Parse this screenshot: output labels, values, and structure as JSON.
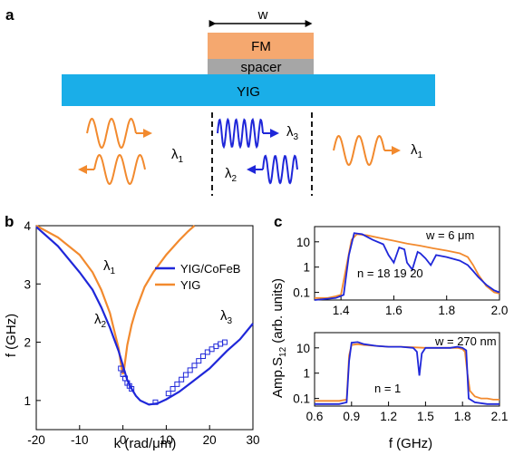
{
  "colors": {
    "orange": "#f28a2e",
    "blue": "#1f27d9",
    "fm": "#f5a86f",
    "spacer": "#a6a6a6",
    "yig": "#1aaee8"
  },
  "panel_a": {
    "letter": "a",
    "width_label": "w",
    "layers": {
      "fm": "FM",
      "spacer": "spacer",
      "yig": "YIG"
    },
    "wave_labels": {
      "left": "λ",
      "left_sub": "1",
      "right": "λ",
      "right_sub": "1",
      "center_top": "λ",
      "center_top_sub": "3",
      "center_bottom": "λ",
      "center_bottom_sub": "2"
    }
  },
  "panel_b": {
    "letter": "b",
    "ylabel": "f (GHz)",
    "xlabel": "k (rad/μm)",
    "legend": [
      "YIG/CoFeB",
      "YIG"
    ],
    "curve_labels": {
      "l1": "λ",
      "l1_sub": "1",
      "l2": "λ",
      "l2_sub": "2",
      "l3": "λ",
      "l3_sub": "3"
    }
  },
  "panel_c": {
    "letter": "c",
    "ylabel": "Amp.S",
    "ylabel_sub": "12",
    "ylabel_suffix": " (arb. units)",
    "xlabel": "f (GHz)",
    "top": {
      "annotation": "w = 6 μm",
      "modes": "n = 18 19 20"
    },
    "bottom": {
      "annotation": "w = 270 nm",
      "modes": "n = 1"
    }
  },
  "chart_data": [
    {
      "type": "line",
      "panel": "b",
      "xlabel": "k (rad/μm)",
      "ylabel": "f (GHz)",
      "xlim": [
        -20,
        30
      ],
      "ylim": [
        0.5,
        4
      ],
      "xticks": [
        -20,
        -10,
        0,
        10,
        20,
        30
      ],
      "yticks": [
        1,
        2,
        3,
        4
      ],
      "series": [
        {
          "name": "YIG/CoFeB",
          "color": "#1f27d9",
          "x": [
            -20,
            -15,
            -10,
            -7,
            -5,
            -3,
            -2,
            -1,
            0,
            1,
            2,
            3,
            4,
            6,
            8,
            10,
            13,
            16,
            20,
            24,
            27,
            30
          ],
          "y": [
            3.98,
            3.65,
            3.2,
            2.9,
            2.6,
            2.25,
            2.05,
            1.85,
            1.6,
            1.35,
            1.2,
            1.08,
            1.0,
            0.93,
            0.95,
            1.02,
            1.15,
            1.32,
            1.55,
            1.85,
            2.05,
            2.32
          ]
        },
        {
          "name": "YIG",
          "color": "#f28a2e",
          "x": [
            -20,
            -15,
            -10,
            -7,
            -5,
            -3,
            -2,
            -1,
            -0.3,
            0,
            0.3,
            1,
            2,
            3,
            5,
            7,
            10,
            13,
            15,
            16.5
          ],
          "y": [
            4.0,
            3.8,
            3.5,
            3.2,
            2.9,
            2.5,
            2.2,
            1.9,
            1.55,
            1.45,
            1.55,
            1.95,
            2.3,
            2.55,
            2.95,
            3.2,
            3.5,
            3.75,
            3.9,
            4.0
          ]
        },
        {
          "name": "",
          "marker": "square-open",
          "color": "#1f27d9",
          "x": [
            -0.5,
            0,
            0.5,
            1,
            1.5,
            2,
            7.5,
            10.5,
            11.5,
            12.5,
            13.5,
            14.5,
            15.5,
            16.5,
            17.5,
            18.5,
            19.5,
            20.5,
            21.5,
            22.5,
            23.5
          ],
          "y": [
            1.55,
            1.45,
            1.38,
            1.3,
            1.25,
            1.2,
            0.97,
            1.12,
            1.2,
            1.28,
            1.36,
            1.44,
            1.52,
            1.6,
            1.68,
            1.76,
            1.83,
            1.88,
            1.93,
            1.97,
            2.0
          ]
        }
      ]
    },
    {
      "type": "line",
      "panel": "c-top",
      "xlim": [
        1.3,
        2.0
      ],
      "ylim_log": [
        0.05,
        40
      ],
      "xticks": [
        1.4,
        1.6,
        1.8,
        2.0
      ],
      "yticks": [
        0.1,
        1,
        10
      ],
      "annotation": "w = 6 μm",
      "series": [
        {
          "name": "",
          "color": "#f28a2e",
          "x": [
            1.3,
            1.35,
            1.38,
            1.4,
            1.42,
            1.44,
            1.46,
            1.5,
            1.55,
            1.6,
            1.65,
            1.7,
            1.75,
            1.8,
            1.85,
            1.88,
            1.9,
            1.92,
            1.95,
            1.98,
            2.0
          ],
          "y": [
            0.06,
            0.06,
            0.07,
            0.08,
            1.0,
            12,
            20,
            18,
            14,
            11,
            8.5,
            7,
            5.5,
            4.5,
            3.5,
            2.5,
            1.2,
            0.5,
            0.18,
            0.1,
            0.09
          ]
        },
        {
          "name": "",
          "color": "#1f27d9",
          "x": [
            1.3,
            1.38,
            1.41,
            1.43,
            1.45,
            1.48,
            1.52,
            1.56,
            1.58,
            1.6,
            1.62,
            1.64,
            1.65,
            1.67,
            1.69,
            1.7,
            1.72,
            1.74,
            1.76,
            1.8,
            1.85,
            1.88,
            1.9,
            1.92,
            1.95,
            1.98,
            2.0
          ],
          "y": [
            0.05,
            0.06,
            0.08,
            3,
            22,
            20,
            12,
            8,
            3,
            1.5,
            6,
            5,
            1.5,
            0.8,
            4,
            3.5,
            2.2,
            1.2,
            3,
            2.5,
            1.8,
            1.2,
            0.7,
            0.4,
            0.2,
            0.12,
            0.1
          ]
        }
      ]
    },
    {
      "type": "line",
      "panel": "c-bottom",
      "xlabel": "f (GHz)",
      "xlim": [
        0.6,
        2.1
      ],
      "ylim_log": [
        0.05,
        40
      ],
      "xticks": [
        0.6,
        0.9,
        1.2,
        1.5,
        1.8,
        2.1
      ],
      "yticks": [
        0.1,
        1,
        10
      ],
      "annotation": "w = 270 nm",
      "series": [
        {
          "name": "",
          "color": "#f28a2e",
          "x": [
            0.6,
            0.8,
            0.86,
            0.88,
            0.9,
            0.95,
            1.0,
            1.1,
            1.2,
            1.3,
            1.4,
            1.5,
            1.6,
            1.7,
            1.76,
            1.8,
            1.82,
            1.84,
            1.86,
            1.9,
            1.95,
            2.0,
            2.05,
            2.1
          ],
          "y": [
            0.08,
            0.08,
            0.09,
            5,
            13,
            14,
            13,
            12,
            11,
            11,
            10.5,
            10,
            10,
            10,
            10,
            9,
            7,
            1,
            0.2,
            0.12,
            0.1,
            0.1,
            0.09,
            0.09
          ]
        },
        {
          "name": "",
          "color": "#1f27d9",
          "x": [
            0.6,
            0.8,
            0.86,
            0.88,
            0.9,
            0.95,
            1.0,
            1.1,
            1.2,
            1.3,
            1.4,
            1.43,
            1.45,
            1.47,
            1.5,
            1.6,
            1.7,
            1.76,
            1.8,
            1.83,
            1.85,
            1.9,
            2.0,
            2.1
          ],
          "y": [
            0.06,
            0.06,
            0.07,
            3,
            16,
            17,
            14,
            12,
            11,
            11,
            10,
            7,
            0.8,
            6,
            10,
            10,
            10,
            11,
            10,
            8,
            0.1,
            0.07,
            0.06,
            0.06
          ]
        }
      ]
    }
  ]
}
